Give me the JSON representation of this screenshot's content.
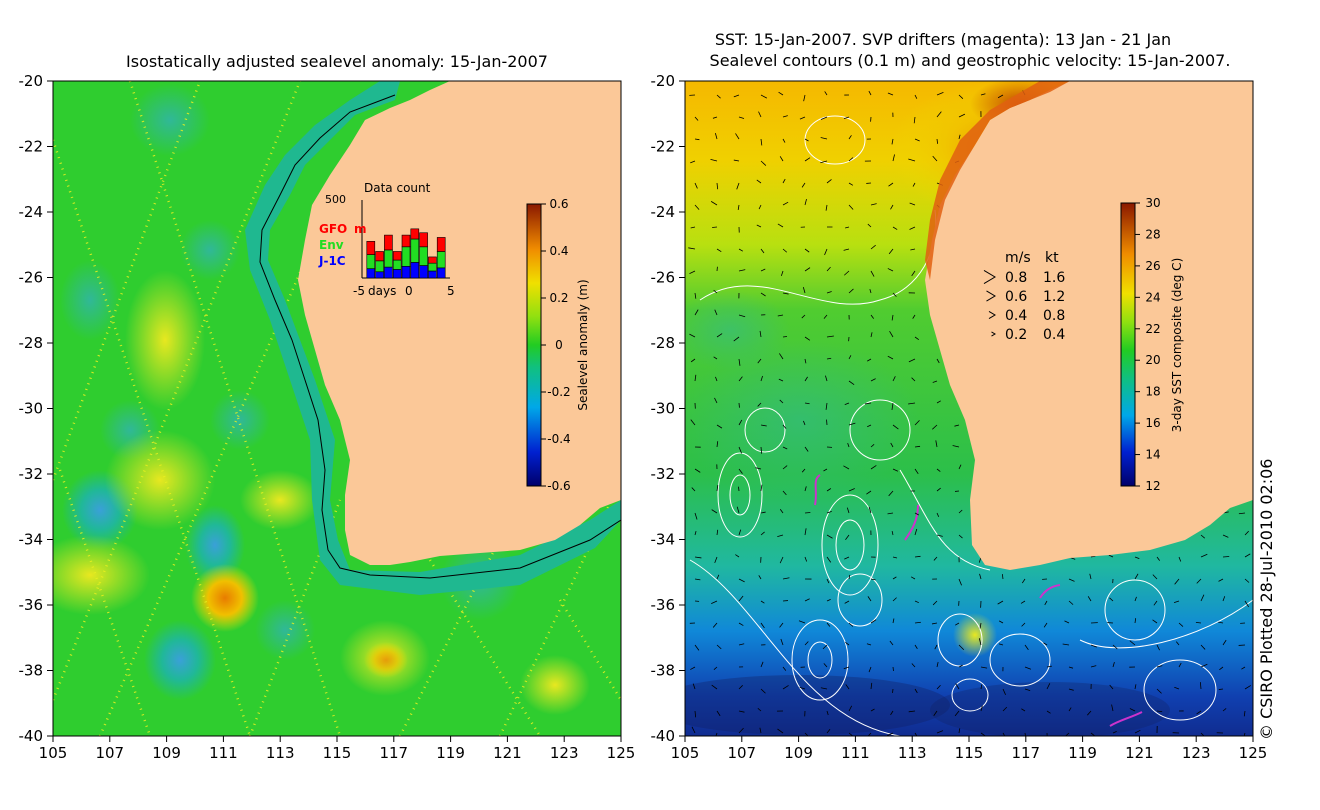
{
  "left_panel": {
    "title": "Isostatically adjusted sealevel anomaly: 15-Jan-2007",
    "x_ticks": [
      "105",
      "107",
      "109",
      "111",
      "113",
      "115",
      "117",
      "119",
      "121",
      "123",
      "125"
    ],
    "y_ticks": [
      "-20",
      "-22",
      "-24",
      "-26",
      "-28",
      "-30",
      "-32",
      "-34",
      "-36",
      "-38",
      "-40"
    ],
    "colorbar": {
      "label": "Sealevel anomaly (m)",
      "ticks": [
        "0.6",
        "0.4",
        "0.2",
        "0",
        "-0.2",
        "-0.4",
        "-0.6"
      ],
      "range": [
        -0.6,
        0.6
      ]
    },
    "inset": {
      "title": "Data count",
      "ymax_label": "500",
      "legend": [
        {
          "name": "GFO",
          "color": "#ff0000"
        },
        {
          "name": "Env",
          "color": "#22dd22"
        },
        {
          "name": "J-1C",
          "color": "#0000ff"
        }
      ],
      "legend_extra": "m",
      "xlabel": "days",
      "x_ticks": [
        "-5",
        "0",
        "5"
      ],
      "bars": [
        {
          "day": -4,
          "jc": 60,
          "env": 90,
          "gfo": 85
        },
        {
          "day": -3,
          "jc": 40,
          "env": 70,
          "gfo": 60
        },
        {
          "day": -2,
          "jc": 70,
          "env": 110,
          "gfo": 95
        },
        {
          "day": -1,
          "jc": 55,
          "env": 60,
          "gfo": 55
        },
        {
          "day": 0,
          "jc": 75,
          "env": 125,
          "gfo": 75
        },
        {
          "day": 1,
          "jc": 100,
          "env": 150,
          "gfo": 65
        },
        {
          "day": 2,
          "jc": 80,
          "env": 120,
          "gfo": 90
        },
        {
          "day": 3,
          "jc": 45,
          "env": 50,
          "gfo": 40
        },
        {
          "day": 4,
          "jc": 65,
          "env": 105,
          "gfo": 90
        }
      ]
    }
  },
  "right_panel": {
    "title_line1": "SST: 15-Jan-2007. SVP drifters (magenta): 13 Jan - 21 Jan",
    "title_line2": "Sealevel contours (0.1 m) and geostrophic velocity: 15-Jan-2007.",
    "x_ticks": [
      "105",
      "107",
      "109",
      "111",
      "113",
      "115",
      "117",
      "119",
      "121",
      "123",
      "125"
    ],
    "y_ticks": [
      "-20",
      "-22",
      "-24",
      "-26",
      "-28",
      "-30",
      "-32",
      "-34",
      "-36",
      "-38",
      "-40"
    ],
    "colorbar": {
      "label": "3-day SST composite (deg C)",
      "ticks": [
        "30",
        "28",
        "26",
        "24",
        "22",
        "20",
        "18",
        "16",
        "14",
        "12"
      ],
      "range": [
        12,
        30
      ]
    },
    "velocity_legend": {
      "header_ms": "m/s",
      "header_kt": "kt",
      "rows": [
        {
          "ms": "0.8",
          "kt": "1.6"
        },
        {
          "ms": "0.6",
          "kt": "1.2"
        },
        {
          "ms": "0.4",
          "kt": "0.8"
        },
        {
          "ms": "0.2",
          "kt": "0.4"
        }
      ]
    }
  },
  "credit": "© CSIRO Plotted 28-Jul-2010 02:06",
  "colors": {
    "land": "#fbc898",
    "ocean_green": "#2fcd2f",
    "shelf_teal": "#1fb890",
    "sst_warm": "#f5c800",
    "sst_cold": "#1030a0",
    "drifter": "#cc33cc"
  }
}
